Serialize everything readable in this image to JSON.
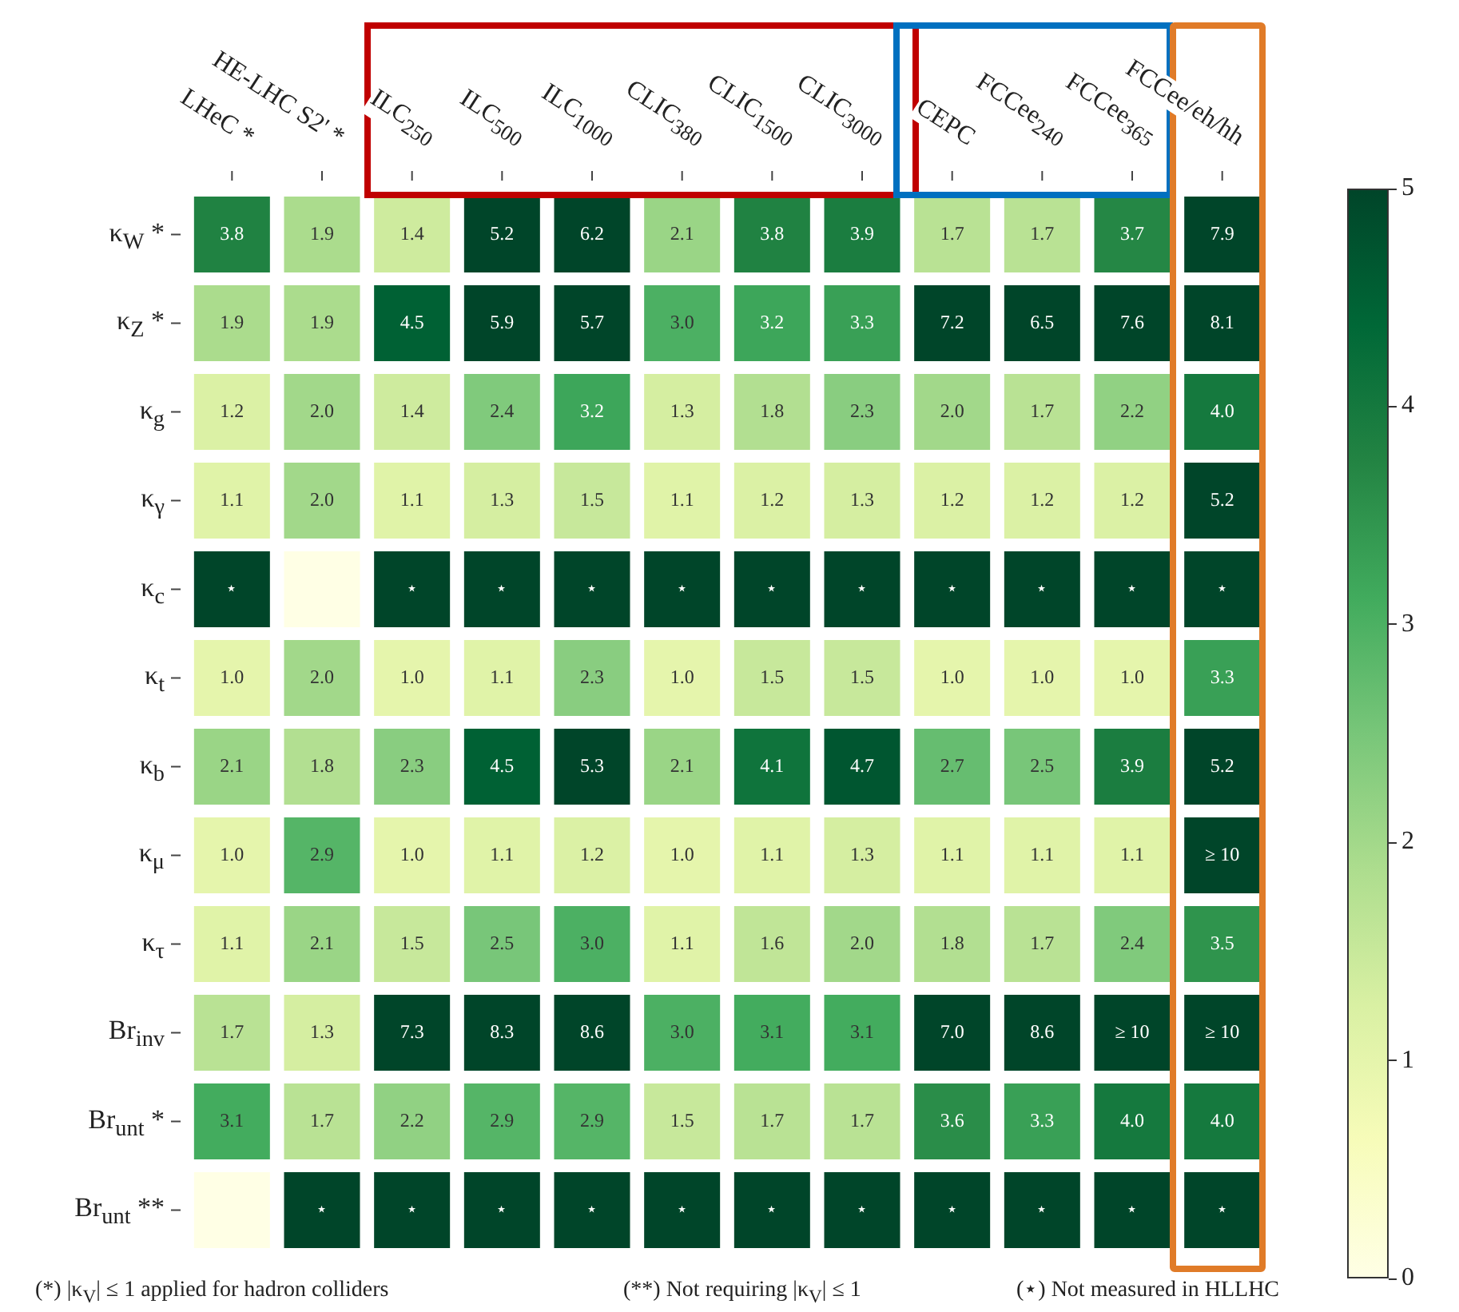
{
  "chart_data": {
    "type": "heatmap",
    "categories": [
      "LHeC *",
      "HE-LHC S2' *",
      "ILC$_{250}$",
      "ILC$_{500}$",
      "ILC$_{1000}$",
      "CLIC$_{380}$",
      "CLIC$_{1500}$",
      "CLIC$_{3000}$",
      "CEPC",
      "FCCee$_{240}$",
      "FCCee$_{365}$",
      "FCCee/eh/hh"
    ],
    "y_categories": [
      "κ$_{W}$ *",
      "κ$_{Z}$ *",
      "κ$_{g}$",
      "κ$_{γ}$",
      "κ$_{c}$",
      "κ$_{t}$",
      "κ$_{b}$",
      "κ$_{μ}$",
      "κ$_{τ}$",
      "Br$_{inv}$",
      "Br$_{unt}$ *",
      "Br$_{unt}$ **"
    ],
    "cells": [
      [
        3.8,
        1.9,
        1.4,
        5.2,
        6.2,
        2.1,
        3.8,
        3.9,
        1.7,
        1.7,
        3.7,
        7.9
      ],
      [
        1.9,
        1.9,
        4.5,
        5.9,
        5.7,
        3.0,
        3.2,
        3.3,
        7.2,
        6.5,
        7.6,
        8.1
      ],
      [
        1.2,
        2.0,
        1.4,
        2.4,
        3.2,
        1.3,
        1.8,
        2.3,
        2.0,
        1.7,
        2.2,
        4.0
      ],
      [
        1.1,
        2.0,
        1.1,
        1.3,
        1.5,
        1.1,
        1.2,
        1.3,
        1.2,
        1.2,
        1.2,
        5.2
      ],
      [
        5,
        0,
        5,
        5,
        5,
        5,
        5,
        5,
        5,
        5,
        5,
        5
      ],
      [
        1.0,
        2.0,
        1.0,
        1.1,
        2.3,
        1.0,
        1.5,
        1.5,
        1.0,
        1.0,
        1.0,
        3.3
      ],
      [
        2.1,
        1.8,
        2.3,
        4.5,
        5.3,
        2.1,
        4.1,
        4.7,
        2.7,
        2.5,
        3.9,
        5.2
      ],
      [
        1.0,
        2.9,
        1.0,
        1.1,
        1.2,
        1.0,
        1.1,
        1.3,
        1.1,
        1.1,
        1.1,
        10
      ],
      [
        1.1,
        2.1,
        1.5,
        2.5,
        3.0,
        1.1,
        1.6,
        2.0,
        1.8,
        1.7,
        2.4,
        3.5
      ],
      [
        1.7,
        1.3,
        7.3,
        8.3,
        8.6,
        3.0,
        3.1,
        3.1,
        7.0,
        8.6,
        10,
        10
      ],
      [
        3.1,
        1.7,
        2.2,
        2.9,
        2.9,
        1.5,
        1.7,
        1.7,
        3.6,
        3.3,
        4.0,
        4.0
      ],
      [
        0,
        5,
        5,
        5,
        5,
        5,
        5,
        5,
        5,
        5,
        5,
        5
      ]
    ],
    "cell_labels": [
      [
        "3.8",
        "1.9",
        "1.4",
        "5.2",
        "6.2",
        "2.1",
        "3.8",
        "3.9",
        "1.7",
        "1.7",
        "3.7",
        "7.9"
      ],
      [
        "1.9",
        "1.9",
        "4.5",
        "5.9",
        "5.7",
        "3.0",
        "3.2",
        "3.3",
        "7.2",
        "6.5",
        "7.6",
        "8.1"
      ],
      [
        "1.2",
        "2.0",
        "1.4",
        "2.4",
        "3.2",
        "1.3",
        "1.8",
        "2.3",
        "2.0",
        "1.7",
        "2.2",
        "4.0"
      ],
      [
        "1.1",
        "2.0",
        "1.1",
        "1.3",
        "1.5",
        "1.1",
        "1.2",
        "1.3",
        "1.2",
        "1.2",
        "1.2",
        "5.2"
      ],
      [
        "⋆",
        null,
        "⋆",
        "⋆",
        "⋆",
        "⋆",
        "⋆",
        "⋆",
        "⋆",
        "⋆",
        "⋆",
        "⋆"
      ],
      [
        "1.0",
        "2.0",
        "1.0",
        "1.1",
        "2.3",
        "1.0",
        "1.5",
        "1.5",
        "1.0",
        "1.0",
        "1.0",
        "3.3"
      ],
      [
        "2.1",
        "1.8",
        "2.3",
        "4.5",
        "5.3",
        "2.1",
        "4.1",
        "4.7",
        "2.7",
        "2.5",
        "3.9",
        "5.2"
      ],
      [
        "1.0",
        "2.9",
        "1.0",
        "1.1",
        "1.2",
        "1.0",
        "1.1",
        "1.3",
        "1.1",
        "1.1",
        "1.1",
        "≥ 10"
      ],
      [
        "1.1",
        "2.1",
        "1.5",
        "2.5",
        "3.0",
        "1.1",
        "1.6",
        "2.0",
        "1.8",
        "1.7",
        "2.4",
        "3.5"
      ],
      [
        "1.7",
        "1.3",
        "7.3",
        "8.3",
        "8.6",
        "3.0",
        "3.1",
        "3.1",
        "7.0",
        "8.6",
        "≥ 10",
        "≥ 10"
      ],
      [
        "3.1",
        "1.7",
        "2.2",
        "2.9",
        "2.9",
        "1.5",
        "1.7",
        "1.7",
        "3.6",
        "3.3",
        "4.0",
        "4.0"
      ],
      [
        null,
        "⋆",
        "⋆",
        "⋆",
        "⋆",
        "⋆",
        "⋆",
        "⋆",
        "⋆",
        "⋆",
        "⋆",
        "⋆"
      ]
    ],
    "clim": [
      0,
      5
    ],
    "cticks": [
      0,
      1,
      2,
      3,
      4,
      5
    ],
    "annotations": [
      "(*) |κ$_{V}$| ≤ 1 applied for hadron colliders",
      "(**) Not requiring |κ$_{V}$| ≤ 1",
      "(⋆) Not measured in HLLHC"
    ]
  }
}
